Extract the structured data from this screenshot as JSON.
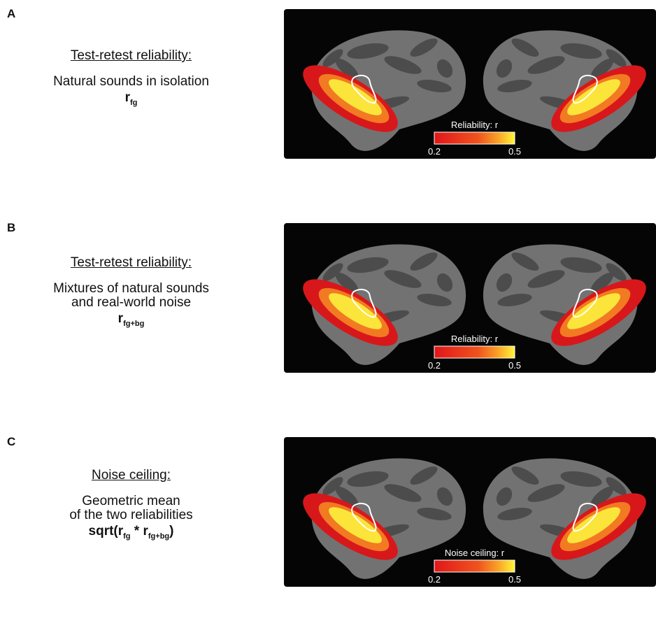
{
  "panels": [
    {
      "letter": "A",
      "heading": "Test-retest reliability:",
      "description": [
        "Natural sounds in isolation"
      ],
      "formula": [
        {
          "base": "r",
          "sub": "fg"
        }
      ],
      "colorbar": {
        "label": "Reliability: r",
        "ticks": [
          "0.2",
          "0.5"
        ]
      }
    },
    {
      "letter": "B",
      "heading": "Test-retest reliability:",
      "description": [
        "Mixtures of natural sounds",
        "and real-world noise"
      ],
      "formula": [
        {
          "base": "r",
          "sub": "fg+bg"
        }
      ],
      "colorbar": {
        "label": "Reliability: r",
        "ticks": [
          "0.2",
          "0.5"
        ]
      }
    },
    {
      "letter": "C",
      "heading": "Noise ceiling:",
      "description": [
        "Geometric mean",
        "of the two reliabilities"
      ],
      "formula": [
        {
          "base": "sqrt(r",
          "sub": "fg"
        },
        {
          "base": " * r",
          "sub": "fg+bg"
        },
        {
          "base": ")"
        }
      ],
      "colorbar": {
        "label": "Noise ceiling: r",
        "ticks": [
          "0.2",
          "0.5"
        ]
      }
    }
  ]
}
